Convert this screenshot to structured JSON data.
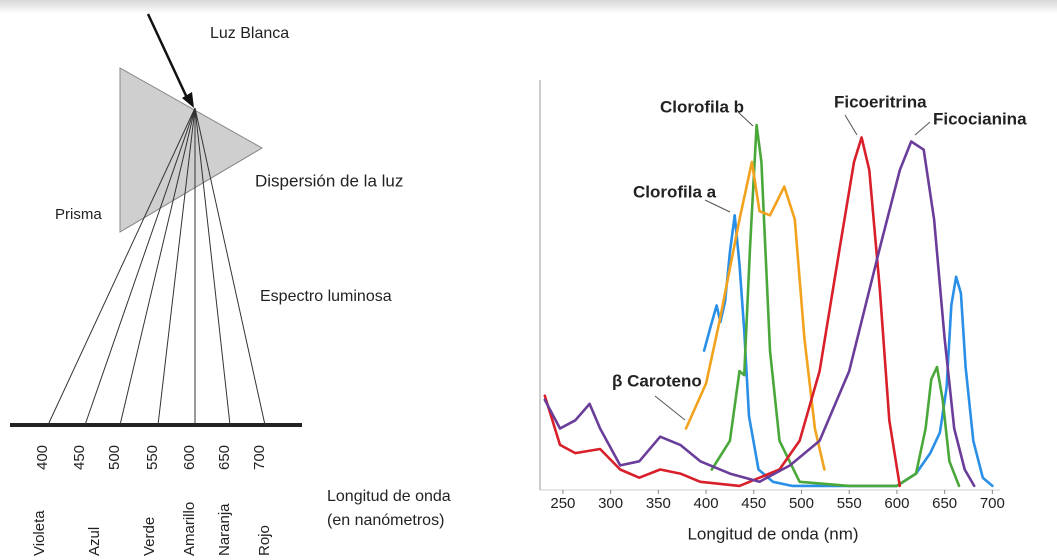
{
  "diagram": {
    "light": "Luz Blanca",
    "prism": "Prisma",
    "dispersion": "Dispersión de la luz",
    "spectrum": "Espectro luminosa",
    "scale_title": "Longitud de onda",
    "scale_unit": "(en nanómetros)",
    "wavelengths": [
      400,
      450,
      500,
      550,
      600,
      650,
      700
    ],
    "colors": [
      "Violeta",
      "Azul",
      "Verde",
      "Amarillo",
      "Naranja",
      "Rojo"
    ]
  },
  "chart_data": {
    "type": "line",
    "x_label": "Longitud de onda (nm)",
    "xlim": [
      226,
      708
    ],
    "xticks": [
      250,
      300,
      350,
      400,
      450,
      500,
      550,
      600,
      650,
      700
    ],
    "ylim": [
      0,
      100
    ],
    "series": [
      {
        "name": "Clorofila a",
        "color": "#2a8fe6",
        "x": [
          398,
          405,
          411,
          415,
          420,
          425,
          430,
          435,
          440,
          445,
          455,
          470,
          490,
          550,
          600,
          620,
          635,
          645,
          652,
          657,
          662,
          667,
          672,
          680,
          690,
          700
        ],
        "values": [
          34,
          40,
          45,
          41,
          46,
          58,
          67,
          55,
          39,
          18,
          5,
          2,
          1,
          1,
          1,
          4,
          9,
          14,
          25,
          45,
          52,
          48,
          30,
          12,
          3,
          1
        ]
      },
      {
        "name": "Clorofila b",
        "color": "#4aa83a",
        "x": [
          406,
          425,
          435,
          440,
          446,
          453,
          458,
          467,
          477,
          498,
          550,
          600,
          620,
          630,
          636,
          642,
          648,
          655,
          665
        ],
        "values": [
          5,
          12,
          29,
          28,
          59,
          89,
          80,
          34,
          12,
          2,
          1,
          1,
          4,
          15,
          27,
          30,
          22,
          7,
          1
        ]
      },
      {
        "name": "β Caroteno",
        "color": "#f2a21c",
        "x": [
          379,
          400,
          414,
          435,
          448,
          456,
          467,
          482,
          493,
          503,
          514,
          524
        ],
        "values": [
          15,
          26,
          41,
          66,
          80,
          68,
          67,
          74,
          66,
          37,
          15,
          5
        ]
      },
      {
        "name": "Ficoeritrina",
        "color": "#d81f2a",
        "x": [
          231,
          247,
          263,
          289,
          310,
          330,
          352,
          373,
          394,
          435,
          477,
          498,
          519,
          540,
          555,
          563,
          571,
          582,
          592,
          603
        ],
        "values": [
          23,
          11,
          9,
          10,
          5,
          3,
          5,
          4,
          2,
          1,
          5,
          12,
          29,
          59,
          80,
          86,
          78,
          49,
          17,
          1
        ]
      },
      {
        "name": "Ficocianina",
        "color": "#6a3d9a",
        "x": [
          231,
          247,
          263,
          278,
          289,
          310,
          330,
          352,
          373,
          394,
          425,
          456,
          488,
          519,
          550,
          582,
          603,
          615,
          628,
          639,
          650,
          660,
          671,
          681
        ],
        "values": [
          22,
          15,
          17,
          21,
          15,
          6,
          7,
          13,
          11,
          7,
          4,
          2,
          6,
          12,
          29,
          59,
          78,
          85,
          83,
          66,
          37,
          15,
          5,
          1
        ]
      }
    ]
  }
}
